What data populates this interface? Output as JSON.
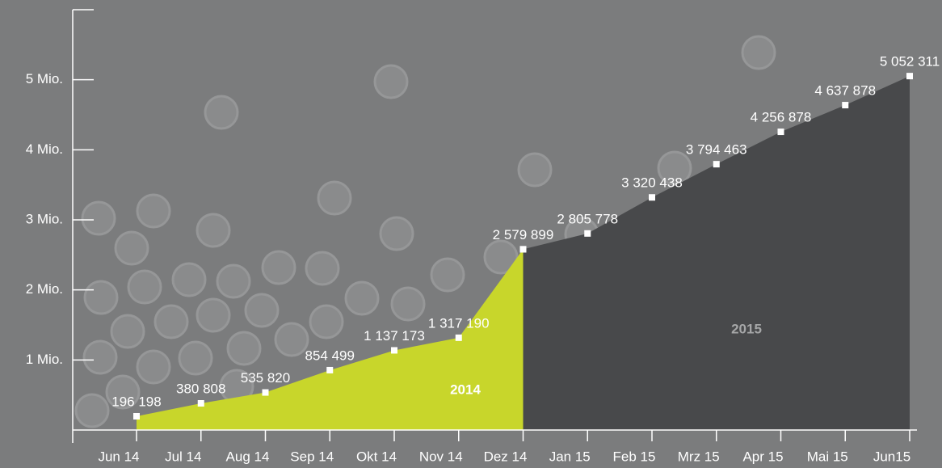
{
  "chart_data": {
    "type": "area",
    "categories": [
      "Jun 14",
      "Jul 14",
      "Aug 14",
      "Sep 14",
      "Okt 14",
      "Nov 14",
      "Dez 14",
      "Jan 15",
      "Feb 15",
      "Mrz 15",
      "Apr 15",
      "Mai 15",
      "Jun15"
    ],
    "series": [
      {
        "name": "2014",
        "color": "#c8d62b",
        "label_color": "#ffffff",
        "values": [
          196198,
          380808,
          535820,
          854499,
          1137173,
          1317190,
          2579899,
          null,
          null,
          null,
          null,
          null,
          null
        ],
        "value_labels": [
          "196 198",
          "380 808",
          "535 820",
          "854 499",
          "1 137 173",
          "1 317 190",
          "2 579 899",
          null,
          null,
          null,
          null,
          null,
          null
        ]
      },
      {
        "name": "2015",
        "color": "#48494b",
        "label_color": "#a6a7a8",
        "values": [
          null,
          null,
          null,
          null,
          null,
          null,
          2579899,
          2805778,
          3320438,
          3794463,
          4256878,
          4637878,
          5052311
        ],
        "value_labels": [
          null,
          null,
          null,
          null,
          null,
          null,
          null,
          "2 805 778",
          "3 320 438",
          "3 794 463",
          "4 256 878",
          "4 637 878",
          "5 052 311"
        ]
      }
    ],
    "ylim": [
      0,
      6000000
    ],
    "yticks": [
      {
        "value": 1000000,
        "label": "1 Mio."
      },
      {
        "value": 2000000,
        "label": "2 Mio."
      },
      {
        "value": 3000000,
        "label": "3 Mio."
      },
      {
        "value": 4000000,
        "label": "4 Mio."
      },
      {
        "value": 5000000,
        "label": "5 Mio."
      }
    ],
    "grid": false
  }
}
